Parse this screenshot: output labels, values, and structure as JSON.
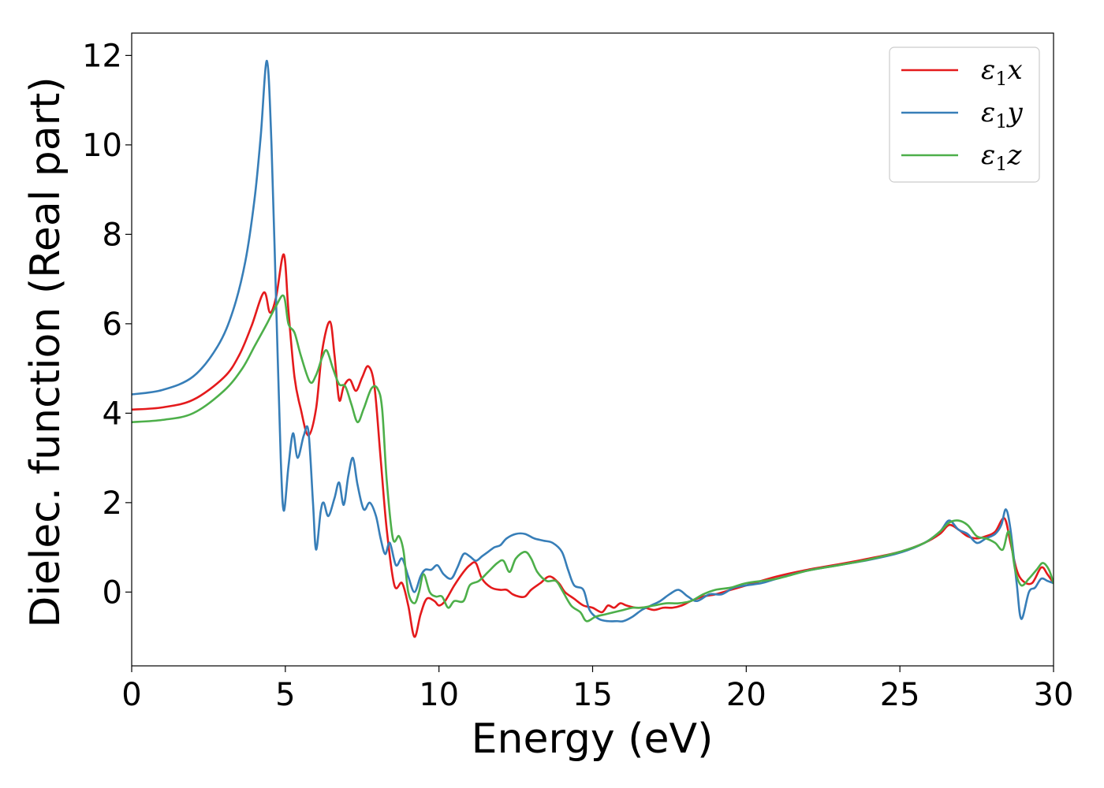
{
  "chart_data": {
    "type": "line",
    "title": "",
    "xlabel": "Energy (eV)",
    "ylabel": "Dielec. function (Real part)",
    "xlim": [
      0,
      30
    ],
    "ylim": [
      -1.65,
      12.5
    ],
    "xticks": [
      0,
      5,
      10,
      15,
      20,
      25,
      30
    ],
    "yticks": [
      0,
      2,
      4,
      6,
      8,
      10,
      12
    ],
    "grid": false,
    "legend_position": "top-right",
    "series": [
      {
        "name": "ε1x",
        "legend_base": "ε",
        "legend_sub": "1",
        "legend_var": "x",
        "color": "#e41a1c",
        "points": [
          [
            0,
            4.08
          ],
          [
            1,
            4.13
          ],
          [
            2,
            4.3
          ],
          [
            3,
            4.8
          ],
          [
            3.5,
            5.3
          ],
          [
            3.9,
            5.95
          ],
          [
            4.3,
            6.7
          ],
          [
            4.5,
            6.25
          ],
          [
            4.7,
            6.6
          ],
          [
            4.95,
            7.55
          ],
          [
            5.1,
            6.3
          ],
          [
            5.3,
            4.8
          ],
          [
            5.5,
            4.1
          ],
          [
            5.75,
            3.5
          ],
          [
            6.0,
            4.1
          ],
          [
            6.2,
            5.4
          ],
          [
            6.45,
            6.05
          ],
          [
            6.6,
            5.3
          ],
          [
            6.75,
            4.3
          ],
          [
            6.9,
            4.6
          ],
          [
            7.1,
            4.75
          ],
          [
            7.3,
            4.5
          ],
          [
            7.5,
            4.8
          ],
          [
            7.7,
            5.05
          ],
          [
            7.9,
            4.6
          ],
          [
            8.1,
            3.0
          ],
          [
            8.3,
            1.4
          ],
          [
            8.55,
            0.15
          ],
          [
            8.8,
            0.2
          ],
          [
            9.0,
            -0.3
          ],
          [
            9.2,
            -1.0
          ],
          [
            9.4,
            -0.5
          ],
          [
            9.6,
            -0.15
          ],
          [
            9.85,
            -0.2
          ],
          [
            10.0,
            -0.3
          ],
          [
            10.2,
            -0.2
          ],
          [
            10.5,
            0.15
          ],
          [
            10.8,
            0.45
          ],
          [
            11.0,
            0.6
          ],
          [
            11.2,
            0.65
          ],
          [
            11.4,
            0.3
          ],
          [
            11.7,
            0.1
          ],
          [
            12.0,
            0.05
          ],
          [
            12.2,
            0.05
          ],
          [
            12.4,
            -0.05
          ],
          [
            12.6,
            -0.1
          ],
          [
            12.8,
            -0.1
          ],
          [
            13.0,
            0.05
          ],
          [
            13.3,
            0.2
          ],
          [
            13.6,
            0.35
          ],
          [
            13.9,
            0.2
          ],
          [
            14.1,
            0.0
          ],
          [
            14.4,
            -0.15
          ],
          [
            14.7,
            -0.3
          ],
          [
            15.0,
            -0.35
          ],
          [
            15.3,
            -0.45
          ],
          [
            15.5,
            -0.3
          ],
          [
            15.7,
            -0.35
          ],
          [
            15.9,
            -0.25
          ],
          [
            16.1,
            -0.3
          ],
          [
            16.4,
            -0.35
          ],
          [
            16.7,
            -0.35
          ],
          [
            17.0,
            -0.4
          ],
          [
            17.3,
            -0.35
          ],
          [
            17.6,
            -0.35
          ],
          [
            17.9,
            -0.3
          ],
          [
            18.2,
            -0.2
          ],
          [
            18.6,
            -0.1
          ],
          [
            19.0,
            -0.05
          ],
          [
            19.5,
            0.05
          ],
          [
            20.0,
            0.15
          ],
          [
            21.0,
            0.35
          ],
          [
            22.0,
            0.5
          ],
          [
            23.0,
            0.62
          ],
          [
            24.0,
            0.75
          ],
          [
            25.0,
            0.9
          ],
          [
            25.8,
            1.1
          ],
          [
            26.3,
            1.3
          ],
          [
            26.6,
            1.5
          ],
          [
            26.9,
            1.4
          ],
          [
            27.2,
            1.25
          ],
          [
            27.5,
            1.2
          ],
          [
            27.8,
            1.25
          ],
          [
            28.1,
            1.35
          ],
          [
            28.4,
            1.65
          ],
          [
            28.6,
            1.1
          ],
          [
            28.8,
            0.5
          ],
          [
            29.0,
            0.25
          ],
          [
            29.3,
            0.2
          ],
          [
            29.6,
            0.55
          ],
          [
            29.8,
            0.4
          ],
          [
            30.0,
            0.2
          ]
        ]
      },
      {
        "name": "ε1y",
        "legend_base": "ε",
        "legend_sub": "1",
        "legend_var": "y",
        "color": "#377eb8",
        "points": [
          [
            0,
            4.42
          ],
          [
            1,
            4.52
          ],
          [
            2,
            4.82
          ],
          [
            2.8,
            5.5
          ],
          [
            3.3,
            6.3
          ],
          [
            3.7,
            7.4
          ],
          [
            4.0,
            8.8
          ],
          [
            4.2,
            10.2
          ],
          [
            4.4,
            11.88
          ],
          [
            4.55,
            10.0
          ],
          [
            4.7,
            6.5
          ],
          [
            4.85,
            3.0
          ],
          [
            4.95,
            1.82
          ],
          [
            5.1,
            2.8
          ],
          [
            5.25,
            3.55
          ],
          [
            5.4,
            3.0
          ],
          [
            5.6,
            3.5
          ],
          [
            5.75,
            3.6
          ],
          [
            5.9,
            2.0
          ],
          [
            6.0,
            0.95
          ],
          [
            6.15,
            1.8
          ],
          [
            6.25,
            2.0
          ],
          [
            6.4,
            1.7
          ],
          [
            6.6,
            2.1
          ],
          [
            6.75,
            2.45
          ],
          [
            6.9,
            1.95
          ],
          [
            7.05,
            2.6
          ],
          [
            7.2,
            3.0
          ],
          [
            7.35,
            2.4
          ],
          [
            7.55,
            1.85
          ],
          [
            7.75,
            2.0
          ],
          [
            7.95,
            1.7
          ],
          [
            8.1,
            1.2
          ],
          [
            8.25,
            0.85
          ],
          [
            8.4,
            1.1
          ],
          [
            8.6,
            0.6
          ],
          [
            8.8,
            0.75
          ],
          [
            9.0,
            0.35
          ],
          [
            9.2,
            0.0
          ],
          [
            9.4,
            0.35
          ],
          [
            9.55,
            0.5
          ],
          [
            9.75,
            0.5
          ],
          [
            9.95,
            0.6
          ],
          [
            10.15,
            0.4
          ],
          [
            10.4,
            0.3
          ],
          [
            10.6,
            0.55
          ],
          [
            10.8,
            0.85
          ],
          [
            11.0,
            0.8
          ],
          [
            11.2,
            0.7
          ],
          [
            11.4,
            0.8
          ],
          [
            11.6,
            0.9
          ],
          [
            11.8,
            1.0
          ],
          [
            12.0,
            1.05
          ],
          [
            12.2,
            1.2
          ],
          [
            12.5,
            1.3
          ],
          [
            12.8,
            1.3
          ],
          [
            13.1,
            1.2
          ],
          [
            13.4,
            1.15
          ],
          [
            13.7,
            1.1
          ],
          [
            14.0,
            0.9
          ],
          [
            14.2,
            0.5
          ],
          [
            14.4,
            0.15
          ],
          [
            14.7,
            0.05
          ],
          [
            14.9,
            -0.4
          ],
          [
            15.2,
            -0.6
          ],
          [
            15.5,
            -0.65
          ],
          [
            15.8,
            -0.65
          ],
          [
            16.0,
            -0.65
          ],
          [
            16.3,
            -0.55
          ],
          [
            16.6,
            -0.4
          ],
          [
            16.9,
            -0.3
          ],
          [
            17.2,
            -0.2
          ],
          [
            17.5,
            -0.05
          ],
          [
            17.8,
            0.05
          ],
          [
            18.1,
            -0.1
          ],
          [
            18.4,
            -0.2
          ],
          [
            18.8,
            -0.05
          ],
          [
            19.2,
            -0.05
          ],
          [
            19.6,
            0.1
          ],
          [
            20.0,
            0.15
          ],
          [
            20.5,
            0.2
          ],
          [
            21.0,
            0.3
          ],
          [
            22.0,
            0.48
          ],
          [
            23.0,
            0.6
          ],
          [
            24.0,
            0.72
          ],
          [
            25.0,
            0.88
          ],
          [
            25.8,
            1.1
          ],
          [
            26.3,
            1.35
          ],
          [
            26.6,
            1.6
          ],
          [
            26.9,
            1.4
          ],
          [
            27.2,
            1.3
          ],
          [
            27.5,
            1.1
          ],
          [
            27.8,
            1.2
          ],
          [
            28.1,
            1.3
          ],
          [
            28.3,
            1.5
          ],
          [
            28.45,
            1.85
          ],
          [
            28.6,
            1.4
          ],
          [
            28.8,
            0.2
          ],
          [
            28.95,
            -0.6
          ],
          [
            29.2,
            0.0
          ],
          [
            29.4,
            0.1
          ],
          [
            29.6,
            0.3
          ],
          [
            29.8,
            0.25
          ],
          [
            30.0,
            0.2
          ]
        ]
      },
      {
        "name": "ε1z",
        "legend_base": "ε",
        "legend_sub": "1",
        "legend_var": "z",
        "color": "#4daf4a",
        "points": [
          [
            0,
            3.8
          ],
          [
            1,
            3.85
          ],
          [
            2,
            4.0
          ],
          [
            3,
            4.5
          ],
          [
            3.6,
            5.0
          ],
          [
            4.0,
            5.5
          ],
          [
            4.4,
            6.0
          ],
          [
            4.7,
            6.4
          ],
          [
            4.95,
            6.62
          ],
          [
            5.1,
            6.0
          ],
          [
            5.3,
            5.8
          ],
          [
            5.5,
            5.3
          ],
          [
            5.8,
            4.7
          ],
          [
            6.0,
            4.85
          ],
          [
            6.2,
            5.25
          ],
          [
            6.35,
            5.4
          ],
          [
            6.55,
            5.0
          ],
          [
            6.75,
            4.65
          ],
          [
            6.95,
            4.6
          ],
          [
            7.15,
            4.2
          ],
          [
            7.35,
            3.8
          ],
          [
            7.55,
            4.1
          ],
          [
            7.8,
            4.55
          ],
          [
            8.0,
            4.55
          ],
          [
            8.15,
            4.1
          ],
          [
            8.3,
            2.5
          ],
          [
            8.5,
            1.2
          ],
          [
            8.7,
            1.25
          ],
          [
            8.85,
            0.9
          ],
          [
            9.0,
            0.0
          ],
          [
            9.2,
            -0.25
          ],
          [
            9.35,
            0.0
          ],
          [
            9.5,
            0.4
          ],
          [
            9.7,
            0.0
          ],
          [
            9.9,
            -0.1
          ],
          [
            10.1,
            -0.1
          ],
          [
            10.3,
            -0.35
          ],
          [
            10.5,
            -0.2
          ],
          [
            10.8,
            -0.2
          ],
          [
            11.0,
            0.15
          ],
          [
            11.3,
            0.25
          ],
          [
            11.6,
            0.45
          ],
          [
            11.9,
            0.65
          ],
          [
            12.1,
            0.7
          ],
          [
            12.3,
            0.45
          ],
          [
            12.5,
            0.75
          ],
          [
            12.8,
            0.9
          ],
          [
            13.0,
            0.75
          ],
          [
            13.2,
            0.45
          ],
          [
            13.5,
            0.25
          ],
          [
            13.8,
            0.25
          ],
          [
            14.0,
            0.05
          ],
          [
            14.3,
            -0.3
          ],
          [
            14.6,
            -0.45
          ],
          [
            14.8,
            -0.65
          ],
          [
            15.1,
            -0.55
          ],
          [
            15.4,
            -0.5
          ],
          [
            15.7,
            -0.45
          ],
          [
            16.0,
            -0.4
          ],
          [
            16.3,
            -0.35
          ],
          [
            16.6,
            -0.35
          ],
          [
            17.0,
            -0.3
          ],
          [
            17.4,
            -0.25
          ],
          [
            17.8,
            -0.25
          ],
          [
            18.2,
            -0.2
          ],
          [
            18.6,
            -0.05
          ],
          [
            19.0,
            0.05
          ],
          [
            19.5,
            0.1
          ],
          [
            20.0,
            0.2
          ],
          [
            21.0,
            0.3
          ],
          [
            22.0,
            0.48
          ],
          [
            23.0,
            0.6
          ],
          [
            24.0,
            0.73
          ],
          [
            25.0,
            0.9
          ],
          [
            25.8,
            1.1
          ],
          [
            26.3,
            1.35
          ],
          [
            26.6,
            1.55
          ],
          [
            26.9,
            1.6
          ],
          [
            27.2,
            1.5
          ],
          [
            27.5,
            1.25
          ],
          [
            27.8,
            1.2
          ],
          [
            28.1,
            1.1
          ],
          [
            28.35,
            0.95
          ],
          [
            28.55,
            1.35
          ],
          [
            28.75,
            0.5
          ],
          [
            28.95,
            0.15
          ],
          [
            29.2,
            0.3
          ],
          [
            29.45,
            0.5
          ],
          [
            29.65,
            0.65
          ],
          [
            29.85,
            0.5
          ],
          [
            30.0,
            0.2
          ]
        ]
      }
    ]
  }
}
